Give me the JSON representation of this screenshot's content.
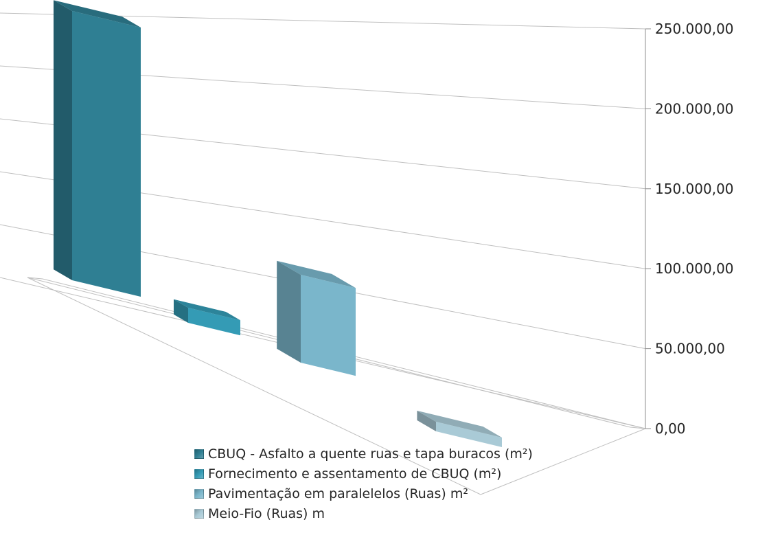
{
  "chart_data": {
    "type": "bar",
    "subtype": "3d-column",
    "title": "",
    "xlabel": "",
    "ylabel": "",
    "ylim": [
      0,
      250000
    ],
    "yticks": [
      "0,00",
      "50.000,00",
      "100.000,00",
      "150.000,00",
      "200.000,00",
      "250.000,00"
    ],
    "ytick_values": [
      0,
      50000,
      100000,
      150000,
      200000,
      250000
    ],
    "grid": true,
    "legend_position": "bottom",
    "series": [
      {
        "name": "CBUQ - Asfalto a quente ruas e tapa buracos (m²)",
        "value": 230000,
        "color": "#2f7f93"
      },
      {
        "name": "Fornecimento e assentamento de CBUQ  (m²)",
        "value": 7000,
        "color": "#349bb5"
      },
      {
        "name": "Pavimentação em paralelelos (Ruas) m²",
        "value": 57000,
        "color": "#7ab6cb"
      },
      {
        "name": "Meio-Fio (Ruas) m",
        "value": 3500,
        "color": "#a9cad6"
      }
    ]
  }
}
